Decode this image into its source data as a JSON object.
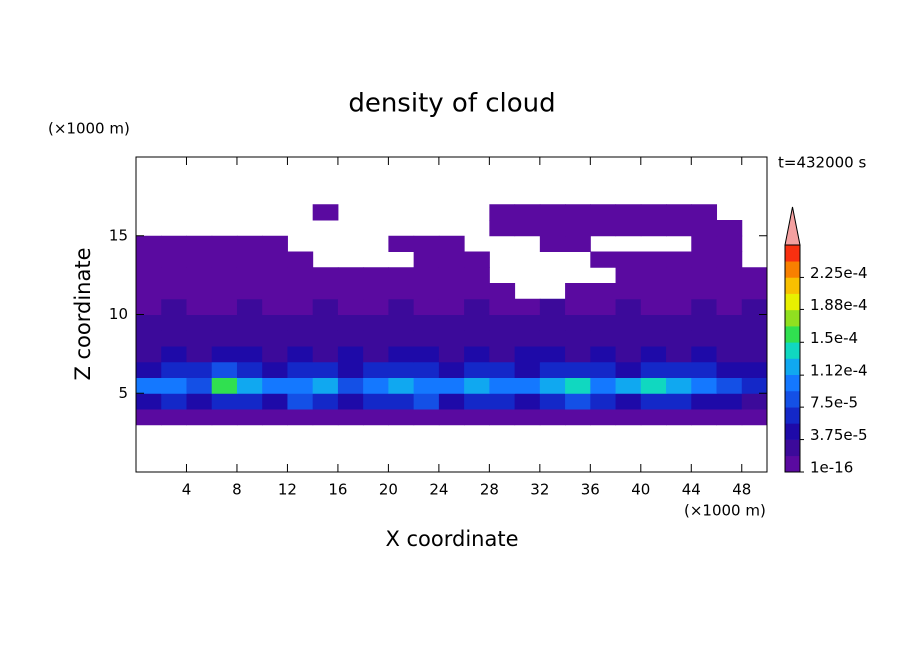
{
  "chart_data": {
    "type": "contour",
    "title": "density of cloud",
    "x_label": "X coordinate",
    "y_label": "Z coordinate",
    "x_unit": "(×1000 m)",
    "y_unit": "(×1000 m)",
    "annotation": "t=432000 s",
    "xlim": [
      0,
      50
    ],
    "ylim": [
      0,
      20
    ],
    "xticks": [
      4,
      8,
      12,
      16,
      20,
      24,
      28,
      32,
      36,
      40,
      44,
      48
    ],
    "yticks": [
      5,
      10,
      15
    ],
    "x": [
      1,
      3,
      5,
      7,
      9,
      11,
      13,
      15,
      17,
      19,
      21,
      23,
      25,
      27,
      29,
      31,
      33,
      35,
      37,
      39,
      41,
      43,
      45,
      47,
      49
    ],
    "y": [
      3.5,
      4.5,
      5.5,
      6.5,
      7.5,
      8.5,
      9.5,
      10.5,
      11.5,
      12.5,
      13.5,
      14.5,
      15.5,
      16.5
    ],
    "values": [
      [
        5e-06,
        5e-06,
        5e-06,
        5e-06,
        5e-06,
        5e-06,
        5e-06,
        5e-06,
        5e-06,
        5e-06,
        5e-06,
        5e-06,
        5e-06,
        5e-06,
        5e-06,
        5e-06,
        5e-06,
        5e-06,
        5e-06,
        5e-06,
        5e-06,
        5e-06,
        5e-06,
        5e-06,
        5e-06
      ],
      [
        4e-05,
        6e-05,
        5e-05,
        7e-05,
        6e-05,
        5e-05,
        8e-05,
        6e-05,
        5e-05,
        7e-05,
        6e-05,
        8e-05,
        5e-05,
        6e-05,
        7e-05,
        5e-05,
        6e-05,
        8e-05,
        7e-05,
        5e-05,
        6e-05,
        7e-05,
        5e-05,
        4e-05,
        3e-05
      ],
      [
        0.0001,
        0.00011,
        9e-05,
        0.00016,
        0.00012,
        0.0001,
        0.00011,
        0.00012,
        9e-05,
        0.00011,
        0.00012,
        0.0001,
        0.00011,
        0.00013,
        0.00011,
        0.0001,
        0.00012,
        0.00015,
        0.00011,
        0.00012,
        0.00014,
        0.00013,
        0.0001,
        9e-05,
        6e-05
      ],
      [
        5e-05,
        6e-05,
        7e-05,
        8e-05,
        6e-05,
        5e-05,
        7e-05,
        6e-05,
        5e-05,
        6e-05,
        7e-05,
        6e-05,
        5e-05,
        7e-05,
        6e-05,
        5e-05,
        6e-05,
        7e-05,
        6e-05,
        5e-05,
        6e-05,
        7e-05,
        6e-05,
        5e-05,
        4e-05
      ],
      [
        3e-05,
        4e-05,
        3e-05,
        4e-05,
        4e-05,
        3e-05,
        4e-05,
        3e-05,
        4e-05,
        3e-05,
        4e-05,
        4e-05,
        3e-05,
        4e-05,
        3e-05,
        4e-05,
        4e-05,
        3e-05,
        4e-05,
        3e-05,
        4e-05,
        3e-05,
        4e-05,
        3e-05,
        3e-05
      ],
      [
        2.5e-05,
        3e-05,
        2.5e-05,
        3e-05,
        2.5e-05,
        3e-05,
        3e-05,
        2.5e-05,
        3e-05,
        2.5e-05,
        3e-05,
        2.5e-05,
        3e-05,
        3e-05,
        2.5e-05,
        3e-05,
        2.5e-05,
        3e-05,
        2.5e-05,
        3e-05,
        3e-05,
        2.5e-05,
        3e-05,
        2.5e-05,
        3e-05
      ],
      [
        2e-05,
        2.5e-05,
        2e-05,
        2e-05,
        2.5e-05,
        2e-05,
        2.5e-05,
        2e-05,
        2e-05,
        2.5e-05,
        2e-05,
        2.5e-05,
        2e-05,
        2e-05,
        2.5e-05,
        2e-05,
        2.5e-05,
        2e-05,
        2e-05,
        2.5e-05,
        2e-05,
        2.5e-05,
        2e-05,
        2e-05,
        2.5e-05
      ],
      [
        1.5e-05,
        2e-05,
        1.5e-05,
        1.5e-05,
        2e-05,
        1.5e-05,
        1.5e-05,
        2e-05,
        1.5e-05,
        1.5e-05,
        2e-05,
        1.5e-05,
        1.5e-05,
        2e-05,
        1.5e-05,
        1.5e-05,
        2e-05,
        1.5e-05,
        1.5e-05,
        2e-05,
        1.5e-05,
        1.5e-05,
        2e-05,
        1.5e-05,
        2e-05
      ],
      [
        1e-05,
        1e-05,
        1e-05,
        1e-05,
        1e-05,
        1e-05,
        1e-05,
        1e-05,
        1e-05,
        1e-05,
        1e-05,
        1e-05,
        1e-05,
        1e-05,
        1e-05,
        null,
        null,
        1e-05,
        1e-05,
        1e-05,
        1e-05,
        1e-05,
        1e-05,
        1e-05,
        1e-05
      ],
      [
        8e-06,
        8e-06,
        8e-06,
        8e-06,
        8e-06,
        8e-06,
        8e-06,
        8e-06,
        8e-06,
        8e-06,
        8e-06,
        8e-06,
        8e-06,
        8e-06,
        null,
        null,
        null,
        null,
        null,
        8e-06,
        8e-06,
        8e-06,
        8e-06,
        8e-06,
        8e-06
      ],
      [
        5e-06,
        5e-06,
        5e-06,
        5e-06,
        5e-06,
        5e-06,
        5e-06,
        null,
        null,
        null,
        null,
        5e-06,
        5e-06,
        5e-06,
        null,
        null,
        null,
        null,
        5e-06,
        5e-06,
        5e-06,
        5e-06,
        5e-06,
        5e-06,
        null
      ],
      [
        5e-06,
        5e-06,
        5e-06,
        5e-06,
        5e-06,
        5e-06,
        null,
        null,
        null,
        null,
        5e-06,
        5e-06,
        5e-06,
        null,
        null,
        null,
        5e-06,
        5e-06,
        null,
        null,
        null,
        null,
        5e-06,
        5e-06,
        null
      ],
      [
        null,
        null,
        null,
        null,
        null,
        null,
        null,
        null,
        null,
        null,
        null,
        null,
        null,
        null,
        5e-06,
        5e-06,
        5e-06,
        5e-06,
        5e-06,
        5e-06,
        5e-06,
        5e-06,
        5e-06,
        5e-06,
        null
      ],
      [
        null,
        null,
        null,
        null,
        null,
        null,
        null,
        5e-06,
        null,
        null,
        null,
        null,
        null,
        null,
        5e-06,
        5e-06,
        5e-06,
        5e-06,
        5e-06,
        5e-06,
        5e-06,
        5e-06,
        5e-06,
        null,
        null
      ]
    ],
    "clim": [
      1e-16,
      0.0002625
    ],
    "colors": [
      "#5a0aa0",
      "#3c0a9a",
      "#1e0aa8",
      "#1428c8",
      "#1450e6",
      "#1478ff",
      "#10a8f0",
      "#10d8c0",
      "#30e050",
      "#90e020",
      "#e8f000",
      "#f8c000",
      "#f88000",
      "#f83010"
    ],
    "extend_color": "#f4a0a0",
    "colorbar_ticks": [
      1e-16,
      {
        "value": 3.75e-05,
        "label": "3.75e-5"
      },
      {
        "value": 7.5e-05,
        "label": "7.5e-5"
      },
      {
        "value": 0.000112,
        "label": "1.12e-4"
      },
      {
        "value": 0.00015,
        "label": "1.5e-4"
      },
      {
        "value": 0.000188,
        "label": "1.88e-4"
      },
      {
        "value": 0.000225,
        "label": "2.25e-4"
      }
    ]
  }
}
